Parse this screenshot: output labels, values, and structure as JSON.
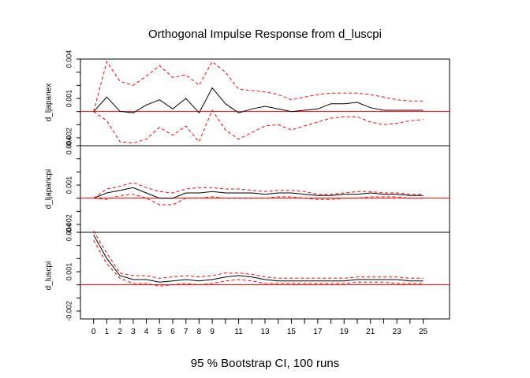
{
  "chart_data": {
    "type": "line",
    "title": "Orthogonal Impulse Response from d_luscpi",
    "xlabel": "95 % Bootstrap CI,  100 runs",
    "x": [
      0,
      1,
      2,
      3,
      4,
      5,
      6,
      7,
      8,
      9,
      10,
      11,
      12,
      13,
      14,
      15,
      16,
      17,
      18,
      19,
      20,
      21,
      22,
      23,
      24,
      25
    ],
    "x_tick_labels": [
      "0",
      "1",
      "2",
      "3",
      "4",
      "5",
      "6",
      "7",
      "8",
      "9",
      "11",
      "13",
      "15",
      "17",
      "19",
      "21",
      "23",
      "25"
    ],
    "legend": "none",
    "colors": {
      "response": "#000000",
      "ci": "#ff0000",
      "zero_line": "#ff0000"
    },
    "panels": [
      {
        "ylabel": "d_ljapanex",
        "ylim": [
          -0.0026,
          0.004
        ],
        "y_tick_labels": [
          "-0.002",
          "0.001",
          "0.004"
        ],
        "zero_line": 0,
        "series": [
          {
            "values": [
              0.0,
              0.0011,
              2e-05,
              -0.0001,
              0.0005,
              0.0009,
              0.0002,
              0.001,
              -0.0001,
              0.0018,
              0.0006,
              -0.0001,
              0.0002,
              0.0004,
              0.0002,
              0.0,
              0.0001,
              0.0002,
              0.0006,
              0.0006,
              0.0007,
              0.0003,
              0.0001,
              0.0001,
              0.0001,
              0.0001
            ]
          },
          {
            "style": "dashed",
            "values": [
              0.0,
              0.0038,
              0.0023,
              0.002,
              0.0027,
              0.0035,
              0.0026,
              0.0028,
              0.002,
              0.0038,
              0.003,
              0.0017,
              0.0016,
              0.0015,
              0.0013,
              0.0009,
              0.0011,
              0.0013,
              0.0014,
              0.0014,
              0.0014,
              0.0013,
              0.0011,
              0.0009,
              0.0008,
              0.0008
            ]
          },
          {
            "style": "dashed",
            "values": [
              0.0,
              -0.0007,
              -0.0023,
              -0.0024,
              -0.0021,
              -0.0012,
              -0.0018,
              -0.0011,
              -0.0023,
              0.0001,
              -0.0014,
              -0.0021,
              -0.0016,
              -0.0011,
              -0.001,
              -0.0014,
              -0.0011,
              -0.0008,
              -0.0005,
              -0.0004,
              -0.0004,
              -0.0008,
              -0.001,
              -0.0009,
              -0.0007,
              -0.0006
            ]
          }
        ]
      },
      {
        "ylabel": "d_ljapancpi",
        "ylim": [
          -0.0026,
          0.004
        ],
        "y_tick_labels": [
          "0.004",
          "0.001",
          "-0.002"
        ],
        "zero_line": 0,
        "series": [
          {
            "values": [
              0.0,
              0.0004,
              0.0006,
              0.0008,
              0.0004,
              0.0,
              0.0,
              0.0004,
              0.0004,
              0.0005,
              0.0004,
              0.0004,
              0.0004,
              0.0003,
              0.0004,
              0.0004,
              0.0003,
              0.0002,
              0.0002,
              0.0003,
              0.0003,
              0.0004,
              0.0003,
              0.0003,
              0.0002,
              0.0002
            ]
          },
          {
            "style": "dashed",
            "values": [
              0.0,
              0.0007,
              0.0009,
              0.0012,
              0.0008,
              0.0005,
              0.0004,
              0.0007,
              0.0008,
              0.0008,
              0.0007,
              0.0007,
              0.0006,
              0.0005,
              0.0006,
              0.0006,
              0.0005,
              0.0003,
              0.0003,
              0.0004,
              0.0005,
              0.0005,
              0.0004,
              0.0004,
              0.0003,
              0.0003
            ]
          },
          {
            "style": "dashed",
            "values": [
              0.0,
              -0.0001,
              0.0002,
              0.0003,
              0.0,
              -0.0005,
              -0.0005,
              0.0,
              0.0,
              0.0001,
              0.0,
              0.0,
              0.0,
              0.0,
              0.0001,
              0.0001,
              0.0,
              -0.0001,
              -0.0001,
              0.0,
              0.0,
              0.0001,
              0.0001,
              0.0001,
              0.0,
              0.0
            ]
          }
        ]
      },
      {
        "ylabel": "d_luscpi",
        "ylim": [
          -0.0026,
          0.004
        ],
        "y_tick_labels": [
          "0.004",
          "0.001",
          "-0.002"
        ],
        "zero_line": 0,
        "series": [
          {
            "values": [
              0.0038,
              0.002,
              0.0007,
              0.0004,
              0.0004,
              0.0002,
              0.0003,
              0.0004,
              0.0003,
              0.0004,
              0.0006,
              0.0007,
              0.0006,
              0.0004,
              0.0003,
              0.0003,
              0.0003,
              0.0003,
              0.0003,
              0.0003,
              0.0004,
              0.0004,
              0.0004,
              0.0004,
              0.0003,
              0.0003
            ]
          },
          {
            "style": "dashed",
            "values": [
              0.0041,
              0.0024,
              0.0009,
              0.0007,
              0.0007,
              0.0005,
              0.0006,
              0.0007,
              0.0006,
              0.0007,
              0.0009,
              0.0009,
              0.0008,
              0.0006,
              0.0005,
              0.0005,
              0.0005,
              0.0005,
              0.0005,
              0.0005,
              0.0006,
              0.0006,
              0.0006,
              0.0006,
              0.0005,
              0.0005
            ]
          },
          {
            "style": "dashed",
            "values": [
              0.0034,
              0.0016,
              0.0005,
              0.0001,
              0.0001,
              -0.0001,
              0.0,
              0.0001,
              0.0,
              0.0001,
              0.0003,
              0.0004,
              0.0003,
              0.0001,
              0.0001,
              0.0001,
              0.0001,
              0.0001,
              0.0001,
              0.0001,
              0.0002,
              0.0002,
              0.0002,
              0.0001,
              0.0001,
              0.0001
            ]
          }
        ]
      }
    ]
  }
}
